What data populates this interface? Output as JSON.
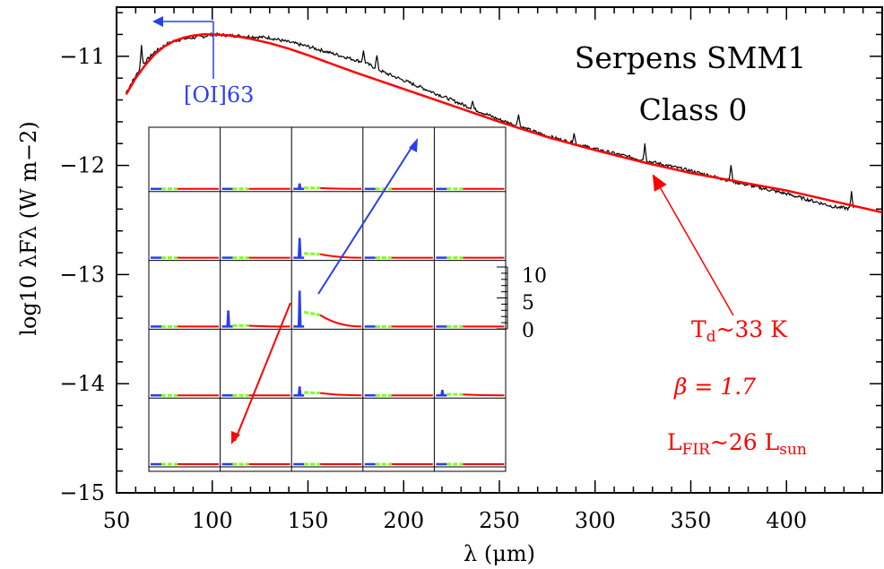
{
  "colors": {
    "observed": "#000000",
    "fit": "#ff0000",
    "blue": "#2a3ef0",
    "green": "#7fff1f"
  },
  "chart_data": {
    "type": "line",
    "title": "Serpens SMM1",
    "subtitle": "Class 0",
    "xlabel": "λ (μm)",
    "ylabel": "log10 λFλ (W m−2)",
    "xlim": [
      50,
      450
    ],
    "ylim": [
      -15,
      -10.55
    ],
    "xticks": [
      50,
      100,
      150,
      200,
      250,
      300,
      350,
      400
    ],
    "yticks": [
      -11,
      -12,
      -13,
      -14,
      -15
    ],
    "grid": false,
    "series": [
      {
        "name": "",
        "type": "observed spectrum",
        "x": [
          55,
          60,
          65,
          70,
          75,
          80,
          85,
          90,
          95,
          100,
          110,
          120,
          130,
          140,
          150,
          160,
          170,
          180,
          190,
          200,
          225,
          250,
          275,
          300,
          325,
          350,
          375,
          400,
          425,
          435
        ],
        "y": [
          -11.33,
          -11.18,
          -11.05,
          -10.96,
          -10.9,
          -10.86,
          -10.84,
          -10.83,
          -10.82,
          -10.8,
          -10.81,
          -10.82,
          -10.83,
          -10.87,
          -10.91,
          -10.96,
          -11.01,
          -11.06,
          -11.15,
          -11.22,
          -11.4,
          -11.58,
          -11.73,
          -11.85,
          -11.95,
          -12.05,
          -12.16,
          -12.26,
          -12.38,
          -12.4
        ]
      },
      {
        "name": "",
        "type": "modified blackbody fit",
        "x": [
          55,
          60,
          65,
          70,
          75,
          80,
          85,
          90,
          95,
          100,
          110,
          120,
          130,
          140,
          150,
          175,
          200,
          225,
          250,
          275,
          300,
          325,
          350,
          375,
          400,
          425,
          450
        ],
        "y": [
          -11.35,
          -11.2,
          -11.08,
          -10.98,
          -10.91,
          -10.86,
          -10.83,
          -10.81,
          -10.8,
          -10.8,
          -10.81,
          -10.84,
          -10.88,
          -10.93,
          -10.99,
          -11.15,
          -11.3,
          -11.45,
          -11.6,
          -11.74,
          -11.86,
          -11.97,
          -12.07,
          -12.15,
          -12.23,
          -12.33,
          -12.43
        ]
      }
    ],
    "line_peaks": [
      {
        "x": 63,
        "height": 0.2
      },
      {
        "x": 179,
        "height": 0.1
      },
      {
        "x": 186,
        "height": 0.12
      },
      {
        "x": 236,
        "height": 0.07
      },
      {
        "x": 260,
        "height": 0.12
      },
      {
        "x": 289,
        "height": 0.1
      },
      {
        "x": 326,
        "height": 0.15
      },
      {
        "x": 371,
        "height": 0.14
      },
      {
        "x": 434,
        "height": 0.15
      }
    ],
    "annotations": {
      "oi": "[OI]63",
      "temperature_symbol": "T",
      "temperature_sub": "d",
      "temperature_value": "~33 K",
      "beta": "β = 1.7",
      "lfir_symbol": "L",
      "lfir_sub": "FIR",
      "lfir_value": "~26 L",
      "lfir_unit_sub": "sun",
      "fit_arrow_target": {
        "x": 330,
        "y": -12.08
      }
    },
    "inset": {
      "type": "grid of spectra",
      "rows": 5,
      "cols": 5,
      "scale_ticks": [
        "10",
        "5",
        "0"
      ],
      "peaks": [
        {
          "row": 0,
          "col": 2,
          "blue": 0.15,
          "green": 0.03
        },
        {
          "row": 1,
          "col": 2,
          "blue": 0.55,
          "green": 0.12
        },
        {
          "row": 2,
          "col": 1,
          "blue": 0.45,
          "green": 0.03
        },
        {
          "row": 2,
          "col": 2,
          "blue": 1.0,
          "green": 0.4
        },
        {
          "row": 3,
          "col": 2,
          "blue": 0.25,
          "green": 0.08
        },
        {
          "row": 3,
          "col": 4,
          "blue": 0.15,
          "green": 0.03
        }
      ]
    }
  }
}
